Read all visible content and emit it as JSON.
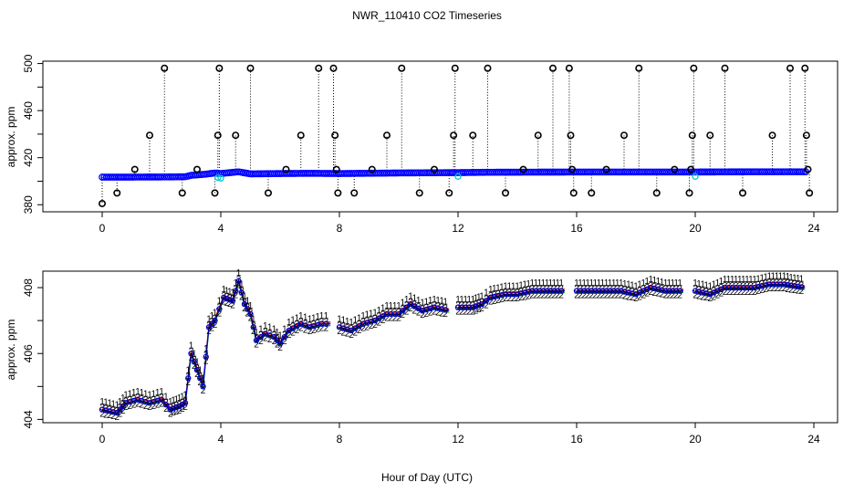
{
  "chart_data": {
    "title": "NWR_110410  CO2 Timeseries",
    "xlabel": "Hour of Day (UTC)",
    "xlim": [
      -2,
      24.8
    ],
    "xticks": [
      "0",
      "4",
      "8",
      "12",
      "16",
      "20",
      "24"
    ],
    "colors": {
      "flag": "#000000",
      "series1": "#dd0000",
      "series2": "#00bb00",
      "series3": "#0000cc",
      "mean": "#0000ff",
      "highlight": "#00cccc"
    },
    "panels": [
      {
        "type": "scatter",
        "ylabel": "approx. ppm",
        "ylim": [
          374,
          502
        ],
        "yticks": [
          "380",
          "420",
          "460",
          "500"
        ],
        "minor_yticks": [
          400,
          440,
          480
        ],
        "baseline": [
          [
            0,
            403.5
          ],
          [
            1,
            403.5
          ],
          [
            2,
            403.6
          ],
          [
            2.8,
            403.8
          ],
          [
            3,
            405
          ],
          [
            3.5,
            406
          ],
          [
            3.8,
            407
          ],
          [
            4,
            406.5
          ],
          [
            4.6,
            408
          ],
          [
            5,
            406.2
          ],
          [
            6,
            406.5
          ],
          [
            7,
            406.7
          ],
          [
            8,
            406.5
          ],
          [
            10,
            407
          ],
          [
            12,
            407.3
          ],
          [
            13,
            407.6
          ],
          [
            16,
            407.8
          ],
          [
            20,
            407.8
          ],
          [
            22,
            408
          ],
          [
            23.8,
            408
          ]
        ],
        "flag_points": [
          [
            0,
            381
          ],
          [
            0.5,
            390
          ],
          [
            1.1,
            410
          ],
          [
            1.6,
            439
          ],
          [
            2.1,
            496
          ],
          [
            2.7,
            390
          ],
          [
            3.2,
            410
          ],
          [
            3.8,
            390
          ],
          [
            3.9,
            439
          ],
          [
            3.95,
            496
          ],
          [
            4.5,
            439
          ],
          [
            5.0,
            496
          ],
          [
            5.6,
            390
          ],
          [
            6.2,
            410
          ],
          [
            6.7,
            439
          ],
          [
            7.3,
            496
          ],
          [
            7.8,
            496
          ],
          [
            7.85,
            439
          ],
          [
            7.9,
            410
          ],
          [
            7.95,
            390
          ],
          [
            8.5,
            390
          ],
          [
            9.1,
            410
          ],
          [
            9.6,
            439
          ],
          [
            10.1,
            496
          ],
          [
            10.7,
            390
          ],
          [
            11.2,
            410
          ],
          [
            11.7,
            390
          ],
          [
            11.85,
            439
          ],
          [
            11.9,
            496
          ],
          [
            12.5,
            439
          ],
          [
            13.0,
            496
          ],
          [
            13.6,
            390
          ],
          [
            14.2,
            410
          ],
          [
            14.7,
            439
          ],
          [
            15.2,
            496
          ],
          [
            15.75,
            496
          ],
          [
            15.8,
            439
          ],
          [
            15.85,
            410
          ],
          [
            15.9,
            390
          ],
          [
            16.5,
            390
          ],
          [
            17.0,
            410
          ],
          [
            17.6,
            439
          ],
          [
            18.1,
            496
          ],
          [
            18.7,
            390
          ],
          [
            19.3,
            410
          ],
          [
            19.8,
            390
          ],
          [
            19.85,
            410
          ],
          [
            19.9,
            439
          ],
          [
            19.95,
            496
          ],
          [
            20.5,
            439
          ],
          [
            21.0,
            496
          ],
          [
            21.6,
            390
          ],
          [
            22.6,
            439
          ],
          [
            23.2,
            496
          ],
          [
            23.7,
            496
          ],
          [
            23.75,
            439
          ],
          [
            23.8,
            410
          ],
          [
            23.85,
            390
          ]
        ],
        "highlight_points": [
          [
            3.9,
            403
          ],
          [
            4,
            402.5
          ],
          [
            12,
            404
          ],
          [
            20,
            404
          ]
        ]
      },
      {
        "type": "line",
        "ylabel": "approx. ppm",
        "ylim": [
          403.9,
          408.5
        ],
        "yticks": [
          "404",
          "406",
          "408"
        ],
        "minor_yticks": [
          405,
          407
        ],
        "series_markers": [
          "1",
          "2",
          "3"
        ],
        "segments": [
          [
            [
              0,
              404.3
            ],
            [
              0.5,
              404.2
            ],
            [
              0.8,
              404.5
            ],
            [
              1.2,
              404.6
            ],
            [
              1.6,
              404.5
            ],
            [
              2,
              404.6
            ],
            [
              2.3,
              404.3
            ],
            [
              2.6,
              404.4
            ],
            [
              2.8,
              404.5
            ],
            [
              3.0,
              406.0
            ],
            [
              3.2,
              405.5
            ],
            [
              3.4,
              405.0
            ],
            [
              3.6,
              406.8
            ],
            [
              3.8,
              407.0
            ],
            [
              4.1,
              407.7
            ],
            [
              4.4,
              407.6
            ],
            [
              4.6,
              408.2
            ],
            [
              4.8,
              407.5
            ],
            [
              5.0,
              407.2
            ],
            [
              5.2,
              406.4
            ],
            [
              5.5,
              406.6
            ],
            [
              5.8,
              406.5
            ],
            [
              6.0,
              406.3
            ],
            [
              6.3,
              406.7
            ],
            [
              6.7,
              406.9
            ],
            [
              7.0,
              406.8
            ],
            [
              7.4,
              406.9
            ],
            [
              7.7,
              406.9
            ]
          ],
          [
            [
              8.0,
              406.8
            ],
            [
              8.4,
              406.7
            ],
            [
              8.8,
              406.9
            ],
            [
              9.2,
              407.0
            ],
            [
              9.6,
              407.2
            ],
            [
              10.0,
              407.2
            ],
            [
              10.4,
              407.5
            ],
            [
              10.8,
              407.3
            ],
            [
              11.2,
              407.4
            ],
            [
              11.7,
              407.3
            ]
          ],
          [
            [
              12.0,
              407.4
            ],
            [
              12.5,
              407.4
            ],
            [
              12.8,
              407.5
            ],
            [
              13.1,
              407.7
            ],
            [
              13.6,
              407.8
            ],
            [
              14.0,
              407.8
            ],
            [
              14.5,
              407.9
            ],
            [
              15.0,
              407.9
            ],
            [
              15.6,
              407.9
            ]
          ],
          [
            [
              16.0,
              407.9
            ],
            [
              16.5,
              407.9
            ],
            [
              17.0,
              407.9
            ],
            [
              17.5,
              407.9
            ],
            [
              18.0,
              407.8
            ],
            [
              18.5,
              408.0
            ],
            [
              19.0,
              407.9
            ],
            [
              19.6,
              407.9
            ]
          ],
          [
            [
              20.0,
              407.9
            ],
            [
              20.5,
              407.8
            ],
            [
              21.0,
              408.0
            ],
            [
              21.5,
              408.0
            ],
            [
              22.0,
              408.0
            ],
            [
              22.5,
              408.1
            ],
            [
              23.0,
              408.1
            ],
            [
              23.7,
              408.0
            ]
          ]
        ]
      }
    ]
  }
}
